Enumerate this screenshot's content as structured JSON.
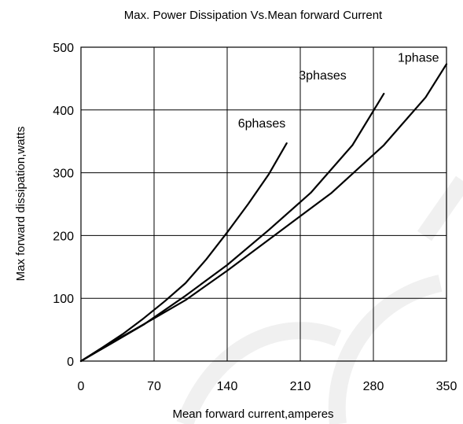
{
  "chart_data": {
    "type": "line",
    "title": "Max. Power Dissipation Vs.Mean forward Current",
    "xlabel": "Mean forward current,amperes",
    "ylabel": "Max forward dissipation,watts",
    "xlim": [
      0,
      350
    ],
    "ylim": [
      0,
      500
    ],
    "xticks": [
      "0",
      "70",
      "140",
      "210",
      "280",
      "350"
    ],
    "yticks": [
      "0",
      "100",
      "200",
      "300",
      "400",
      "500"
    ],
    "grid": true,
    "legend": "none",
    "series": [
      {
        "name": "6phases",
        "x": [
          0,
          20,
          40,
          60,
          80,
          100,
          120,
          140,
          160,
          180,
          197
        ],
        "y": [
          0,
          21,
          43,
          68,
          95,
          124,
          162,
          205,
          250,
          298,
          347
        ]
      },
      {
        "name": "3phases",
        "x": [
          0,
          30,
          60,
          100,
          140,
          180,
          220,
          260,
          290
        ],
        "y": [
          0,
          29,
          58,
          104,
          153,
          209,
          268,
          344,
          426
        ]
      },
      {
        "name": "1phase",
        "x": [
          0,
          30,
          70,
          100,
          140,
          190,
          240,
          290,
          330,
          350
        ],
        "y": [
          0,
          30,
          68,
          97,
          144,
          206,
          268,
          344,
          420,
          473
        ]
      }
    ],
    "watermark": "ECH"
  }
}
